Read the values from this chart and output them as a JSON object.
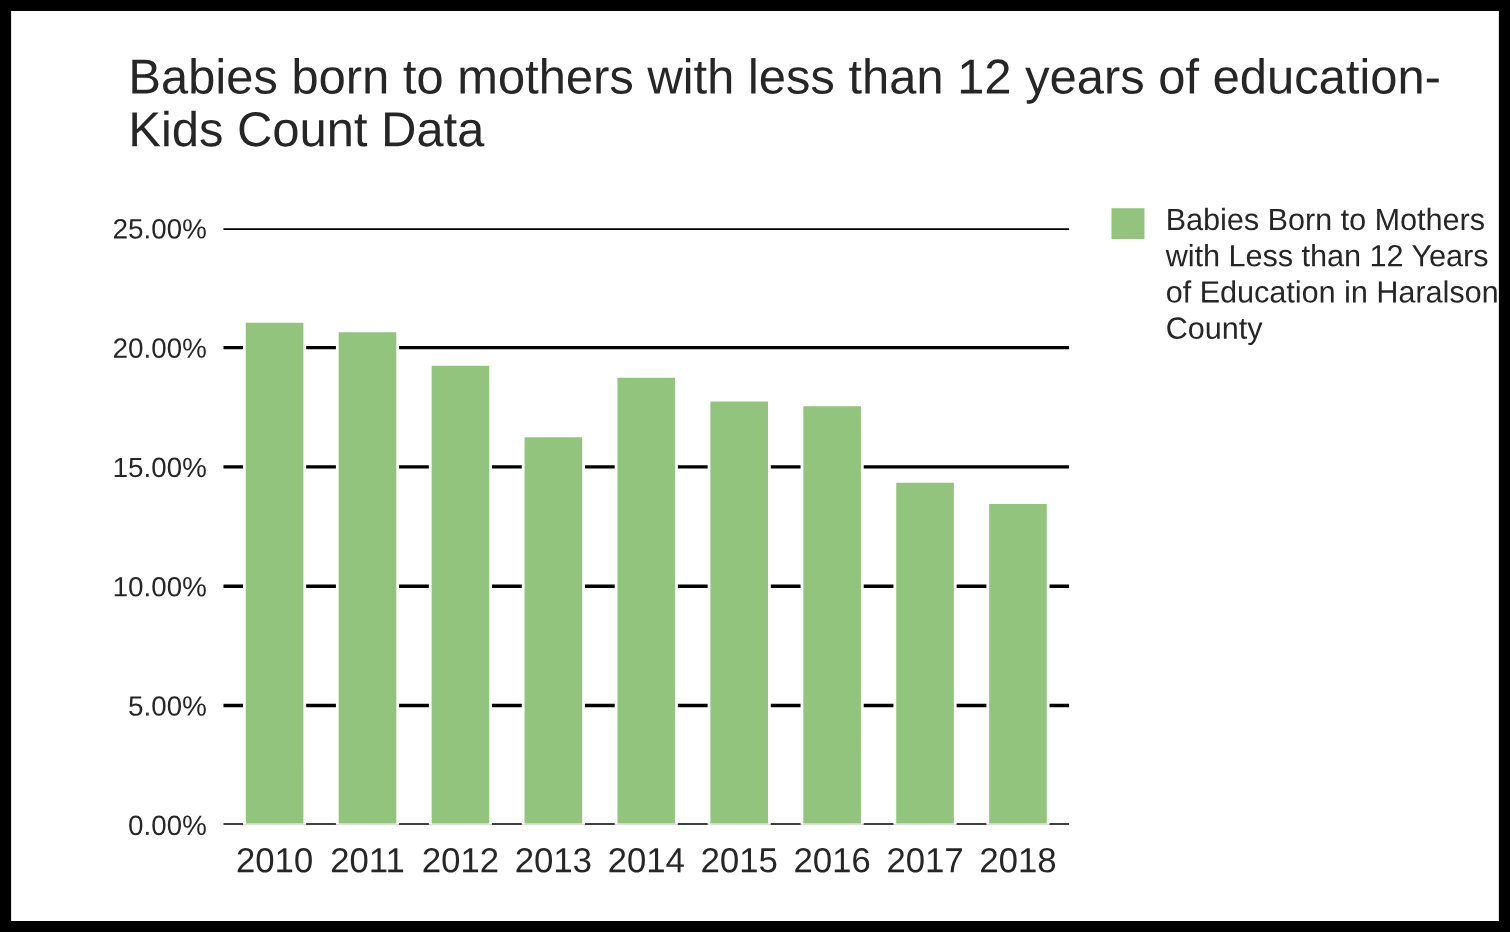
{
  "chart_data": {
    "type": "bar",
    "title": "Babies born to mothers with less than 12 years of education- Kids Count Data",
    "categories": [
      "2010",
      "2011",
      "2012",
      "2013",
      "2014",
      "2015",
      "2016",
      "2017",
      "2018"
    ],
    "series": [
      {
        "name": "Babies Born to Mothers with Less than 12 Years of Education in Haralson County",
        "color": "#93c47d",
        "values": [
          21.1,
          20.7,
          19.3,
          16.3,
          18.8,
          17.8,
          17.6,
          14.4,
          13.5
        ]
      }
    ],
    "ylim": [
      0,
      25
    ],
    "yticks": [
      {
        "value": 0,
        "label": "0.00%"
      },
      {
        "value": 5,
        "label": "5.00%"
      },
      {
        "value": 10,
        "label": "10.00%"
      },
      {
        "value": 15,
        "label": "15.00%"
      },
      {
        "value": 20,
        "label": "20.00%"
      },
      {
        "value": 25,
        "label": "25.00%"
      }
    ],
    "grid": "y",
    "legend": "right"
  }
}
